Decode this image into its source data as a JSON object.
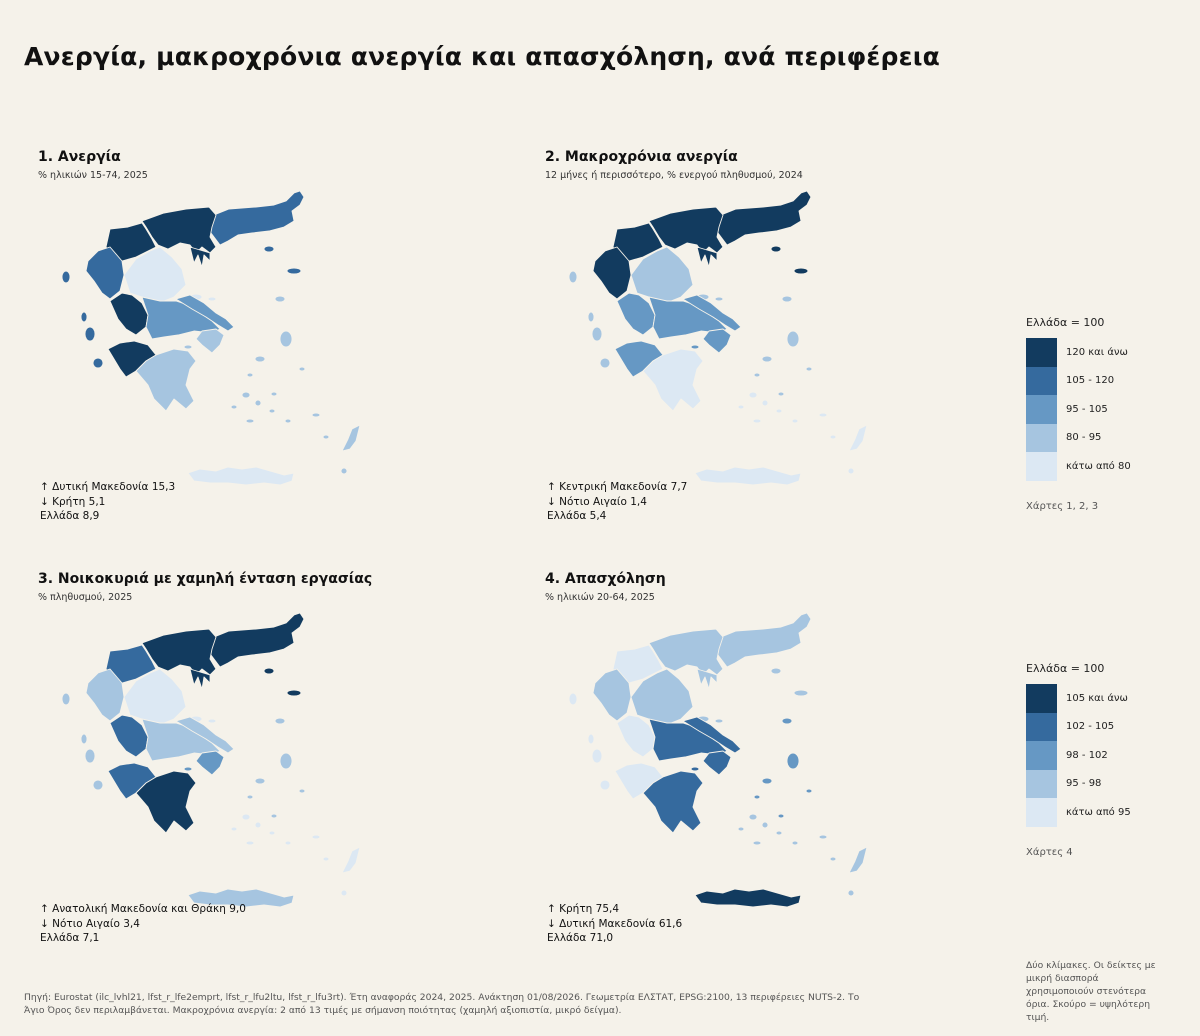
{
  "title": "Ανεργία, μακροχρόνια ανεργία και απασχόληση, ανά περιφέρεια",
  "colors": {
    "background": "#f5f2ea",
    "classes": [
      "#dce8f3",
      "#a6c5e0",
      "#6698c4",
      "#356a9e",
      "#123b5f"
    ]
  },
  "panels": [
    {
      "title": "1. Ανεργία",
      "subtitle": "% ηλικιών 15-74, 2025",
      "stats": {
        "high": "↑ Δυτική Μακεδονία  15,3",
        "low": "↓ Κρήτη  5,1",
        "national": "Ελλάδα  8,9"
      },
      "classes": {
        "AMTH": 4,
        "KMAK": 5,
        "DMAK": 5,
        "IPEIROS": 4,
        "THESSALIA": 1,
        "IONIA": 4,
        "DELLADA": 5,
        "STELLADA": 3,
        "ATTIKI": 2,
        "PELOPONNISOS": 2,
        "VAIGAIO": 2,
        "NAIGAIO": 2,
        "KRITI": 1
      }
    },
    {
      "title": "2. Μακροχρόνια ανεργία",
      "subtitle": "12 μήνες ή περισσότερο, % ενεργού πληθυσμού, 2024",
      "stats": {
        "high": "↑ Κεντρική Μακεδονία  7,7",
        "low": "↓ Νότιο Αιγαίο  1,4",
        "national": "Ελλάδα  5,4"
      },
      "classes": {
        "AMTH": 5,
        "KMAK": 5,
        "DMAK": 5,
        "IPEIROS": 5,
        "THESSALIA": 2,
        "IONIA": 2,
        "DELLADA": 3,
        "STELLADA": 3,
        "ATTIKI": 3,
        "PELOPONNISOS": 1,
        "VAIGAIO": 2,
        "NAIGAIO": 1,
        "KRITI": 1
      }
    },
    {
      "title": "3. Νοικοκυριά με χαμηλή ένταση εργασίας",
      "subtitle": "% πληθυσμού, 2025",
      "stats": {
        "high": "↑ Ανατολική Μακεδονία και Θράκη  9,0",
        "low": "↓ Νότιο Αιγαίο  3,4",
        "national": "Ελλάδα  7,1"
      },
      "classes": {
        "AMTH": 5,
        "KMAK": 5,
        "DMAK": 4,
        "IPEIROS": 2,
        "THESSALIA": 1,
        "IONIA": 2,
        "DELLADA": 4,
        "STELLADA": 2,
        "ATTIKI": 3,
        "PELOPONNISOS": 5,
        "VAIGAIO": 2,
        "NAIGAIO": 1,
        "KRITI": 2
      }
    },
    {
      "title": "4. Απασχόληση",
      "subtitle": "% ηλικιών 20-64, 2025",
      "stats": {
        "high": "↑ Κρήτη  75,4",
        "low": "↓ Δυτική Μακεδονία  61,6",
        "national": "Ελλάδα  71,0"
      },
      "classes": {
        "AMTH": 2,
        "KMAK": 2,
        "DMAK": 1,
        "IPEIROS": 2,
        "THESSALIA": 2,
        "IONIA": 1,
        "DELLADA": 1,
        "STELLADA": 4,
        "ATTIKI": 4,
        "PELOPONNISOS": 4,
        "VAIGAIO": 3,
        "NAIGAIO": 2,
        "KRITI": 5
      }
    }
  ],
  "legends": [
    {
      "title": "Ελλάδα = 100",
      "labels": [
        "120 και άνω",
        "105 - 120",
        "95 - 105",
        "80 - 95",
        "κάτω από 80"
      ],
      "maps": "Χάρτες 1, 2, 3"
    },
    {
      "title": "Ελλάδα = 100",
      "labels": [
        "105 και άνω",
        "102 - 105",
        "98 - 102",
        "95 - 98",
        "κάτω από 95"
      ],
      "maps": "Χάρτες 4"
    }
  ],
  "note": "Δύο κλίμακες. Οι δείκτες με μικρή διασπορά χρησιμοποιούν στενότερα όρια. Σκούρο = υψηλότερη τιμή.",
  "source": "Πηγή: Eurostat (ilc_lvhl21, lfst_r_lfe2emprt, lfst_r_lfu2ltu, lfst_r_lfu3rt). Έτη αναφοράς 2024, 2025. Ανάκτηση 01/08/2026. Γεωμετρία ΕΛΣΤΑΤ, EPSG:2100, 13 περιφέρειες NUTS-2. Το Άγιο Όρος δεν περιλαμβάνεται. Μακροχρόνια ανεργία: 2 από 13 τιμές με σήμανση ποιότητας (χαμηλή αξιοπιστία, μικρό δείγμα)."
}
